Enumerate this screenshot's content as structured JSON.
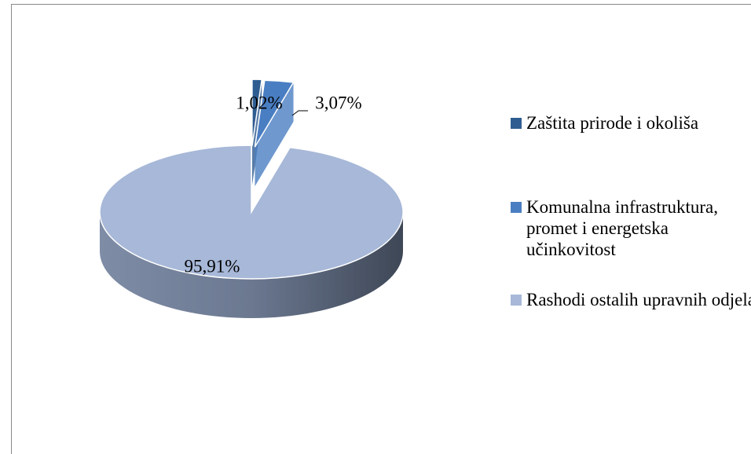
{
  "chart_data": {
    "type": "pie",
    "categories": [
      "Zaštita prirode i okoliša",
      "Komunalna infrastruktura, promet i energetska učinkovitost",
      "Rashodi ostalih upravnih odjela"
    ],
    "values": [
      1.02,
      3.07,
      95.91
    ],
    "value_labels": [
      "1,02%",
      "3,07%",
      "95,91%"
    ],
    "colors": [
      "#2f5d91",
      "#4a7ec2",
      "#a7b8d8"
    ],
    "legend": "right"
  }
}
